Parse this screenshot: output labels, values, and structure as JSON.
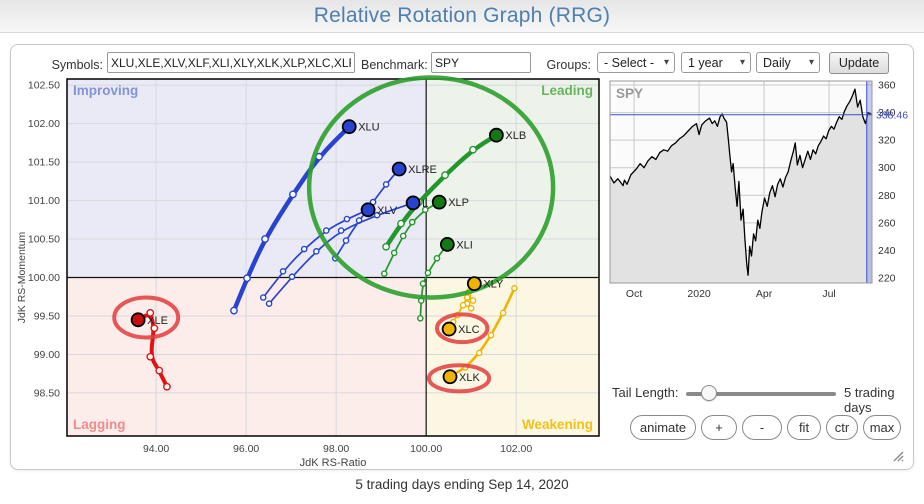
{
  "page": {
    "title": "Relative Rotation Graph (RRG)",
    "caption": "5 trading days ending Sep 14, 2020"
  },
  "controls": {
    "symbols_label": "Symbols:",
    "symbols_value": "XLU,XLE,XLV,XLF,XLI,XLY,XLK,XLP,XLC,XLRE,XL",
    "benchmark_label": "Benchmark:",
    "benchmark_value": "SPY",
    "groups_label": "Groups:",
    "groups_value": "- Select -",
    "period_value": "1 year",
    "frequency_value": "Daily",
    "update_label": "Update"
  },
  "tail": {
    "label": "Tail Length:",
    "value_text": "5 trading days",
    "slider_pos": 0.15
  },
  "buttons": [
    "animate",
    "+",
    "-",
    "fit",
    "ctr",
    "max"
  ],
  "chart_data": [
    {
      "type": "scatter",
      "title": "Relative Rotation Graph",
      "xlabel": "JdK RS-Ratio",
      "ylabel": "JdK RS-Momentum",
      "xlim": [
        92.02,
        103.84
      ],
      "ylim": [
        97.94,
        102.58
      ],
      "xticks": [
        94,
        96,
        98,
        100,
        102
      ],
      "yticks": [
        98.5,
        99.0,
        99.5,
        100.0,
        100.5,
        101.0,
        101.5,
        102.0,
        102.5
      ],
      "center": [
        100,
        100
      ],
      "grid": true,
      "quadrants": [
        {
          "name": "Improving",
          "text_color": "#8293d8",
          "bg": "#e9eaf5"
        },
        {
          "name": "Leading",
          "text_color": "#67b55b",
          "bg": "#edf3eb"
        },
        {
          "name": "Lagging",
          "text_color": "#f08c8c",
          "bg": "#fcecea"
        },
        {
          "name": "Weakening",
          "text_color": "#f2c118",
          "bg": "#fbf7e3"
        }
      ],
      "series": [
        {
          "symbol": "XLU",
          "label_display": "XLU",
          "color": "#2743cf",
          "dot_color": "#2743cf",
          "weight": 4.5,
          "points": [
            [
              95.73,
              99.57
            ],
            [
              96.02,
              99.99
            ],
            [
              96.42,
              100.5
            ],
            [
              97.04,
              101.08
            ],
            [
              97.62,
              101.57
            ],
            [
              98.29,
              101.96
            ]
          ]
        },
        {
          "symbol": "XLRE",
          "label_display": "XLRE",
          "color": "#2743cf",
          "dot_color": "#2743cf",
          "weight": 1.7,
          "points": [
            [
              97.98,
              100.25
            ],
            [
              98.22,
              100.48
            ],
            [
              98.51,
              100.74
            ],
            [
              98.82,
              100.98
            ],
            [
              99.11,
              101.21
            ],
            [
              99.4,
              101.41
            ]
          ]
        },
        {
          "symbol": "XLV",
          "label_display": "XLV",
          "color": "#2743cf",
          "dot_color": "#2743cf",
          "weight": 1.7,
          "points": [
            [
              96.38,
              99.74
            ],
            [
              96.82,
              100.08
            ],
            [
              97.29,
              100.37
            ],
            [
              97.78,
              100.61
            ],
            [
              98.24,
              100.76
            ],
            [
              98.71,
              100.88
            ]
          ]
        },
        {
          "symbol": "XLF",
          "label_display": "L",
          "color": "#2743cf",
          "dot_color": "#2743cf",
          "weight": 1.7,
          "points": [
            [
              96.51,
              99.66
            ],
            [
              97.02,
              100.01
            ],
            [
              97.56,
              100.34
            ],
            [
              98.11,
              100.61
            ],
            [
              98.91,
              100.81
            ],
            [
              99.71,
              100.97
            ]
          ]
        },
        {
          "symbol": "XLP",
          "label_display": "XLP",
          "color": "#22982c",
          "dot_color": "#127a12",
          "weight": 1.7,
          "points": [
            [
              99.07,
              100.05
            ],
            [
              99.29,
              100.32
            ],
            [
              99.49,
              100.54
            ],
            [
              99.69,
              100.72
            ],
            [
              99.98,
              100.88
            ],
            [
              100.29,
              100.98
            ]
          ]
        },
        {
          "symbol": "XLB",
          "label_display": "XLB",
          "color": "#22982c",
          "dot_color": "#127a12",
          "weight": 4.5,
          "points": [
            [
              99.11,
              100.4
            ],
            [
              99.44,
              100.7
            ],
            [
              99.84,
              100.98
            ],
            [
              100.42,
              101.33
            ],
            [
              101.04,
              101.66
            ],
            [
              101.56,
              101.85
            ]
          ]
        },
        {
          "symbol": "XLI",
          "label_display": "XLI",
          "color": "#22982c",
          "dot_color": "#127a12",
          "weight": 1.7,
          "points": [
            [
              99.87,
              99.47
            ],
            [
              99.89,
              99.7
            ],
            [
              99.93,
              99.92
            ],
            [
              100.04,
              100.06
            ],
            [
              100.24,
              100.25
            ],
            [
              100.47,
              100.43
            ]
          ]
        },
        {
          "symbol": "XLY",
          "label_display": "XLY",
          "color": "#f0b400",
          "dot_color": "#f0b400",
          "weight": 1.7,
          "points": [
            [
              101.0,
              99.6
            ],
            [
              100.91,
              99.66
            ],
            [
              101.04,
              99.7
            ],
            [
              100.93,
              99.77
            ],
            [
              101.02,
              99.85
            ],
            [
              101.07,
              99.92
            ]
          ]
        },
        {
          "symbol": "XLC",
          "label_display": "XLC",
          "color": "#f0b400",
          "dot_color": "#f0b400",
          "weight": 1.7,
          "points": [
            [
              100.96,
              99.82
            ],
            [
              100.91,
              99.74
            ],
            [
              100.82,
              99.64
            ],
            [
              100.69,
              99.51
            ],
            [
              100.6,
              99.42
            ],
            [
              100.51,
              99.33
            ]
          ]
        },
        {
          "symbol": "XLK",
          "label_display": "XLK",
          "color": "#f0b400",
          "dot_color": "#f0b400",
          "weight": 2.6,
          "points": [
            [
              101.96,
              99.86
            ],
            [
              101.71,
              99.54
            ],
            [
              101.44,
              99.25
            ],
            [
              101.18,
              99.02
            ],
            [
              100.87,
              98.83
            ],
            [
              100.53,
              98.71
            ]
          ]
        },
        {
          "symbol": "XLE",
          "label_display": "XLE",
          "color": "#e31212",
          "dot_color": "#c80f0f",
          "weight": 4.0,
          "points": [
            [
              94.24,
              98.58
            ],
            [
              94.07,
              98.79
            ],
            [
              93.87,
              98.97
            ],
            [
              93.96,
              99.34
            ],
            [
              93.87,
              99.54
            ],
            [
              93.6,
              99.45
            ]
          ]
        }
      ],
      "annotations": {
        "circle": {
          "cx": 100.11,
          "cy": 101.17,
          "rx": 2.71,
          "ry": 1.43,
          "color": "#2ca02c",
          "width": 4.5
        },
        "ellipses": [
          {
            "cx": 93.78,
            "cy": 99.48,
            "rx": 0.71,
            "ry": 0.26,
            "color": "#e23c3c",
            "width": 4
          },
          {
            "cx": 100.8,
            "cy": 99.34,
            "rx": 0.56,
            "ry": 0.18,
            "color": "#e23c3c",
            "width": 4
          },
          {
            "cx": 100.73,
            "cy": 98.69,
            "rx": 0.67,
            "ry": 0.17,
            "color": "#e23c3c",
            "width": 4
          }
        ]
      }
    },
    {
      "type": "area",
      "title": "SPY",
      "ylim": [
        216.4,
        362.9
      ],
      "yticks": [
        220,
        240,
        260,
        280,
        300,
        320,
        340,
        360
      ],
      "xtick_labels": [
        "Oct",
        "2020",
        "Apr",
        "Jul"
      ],
      "xtick_pos": [
        0.092,
        0.34,
        0.588,
        0.836
      ],
      "last_price": "338.46",
      "last_price_value": 338.46,
      "highlight_start": 0.98,
      "line_color": "#000000",
      "fill_color": "#e2e2e2",
      "marker_color": "#3a50c8",
      "points": [
        [
          0,
          294
        ],
        [
          0.015,
          289
        ],
        [
          0.03,
          292
        ],
        [
          0.05,
          287
        ],
        [
          0.055,
          291
        ],
        [
          0.065,
          288
        ],
        [
          0.08,
          295
        ],
        [
          0.1,
          299
        ],
        [
          0.115,
          303
        ],
        [
          0.13,
          300
        ],
        [
          0.145,
          305
        ],
        [
          0.16,
          308
        ],
        [
          0.175,
          306
        ],
        [
          0.19,
          311
        ],
        [
          0.205,
          313
        ],
        [
          0.22,
          312
        ],
        [
          0.235,
          316
        ],
        [
          0.25,
          318
        ],
        [
          0.265,
          321
        ],
        [
          0.28,
          323
        ],
        [
          0.3,
          327
        ],
        [
          0.315,
          330
        ],
        [
          0.33,
          332
        ],
        [
          0.34,
          324
        ],
        [
          0.35,
          331
        ],
        [
          0.365,
          334
        ],
        [
          0.38,
          336
        ],
        [
          0.39,
          332
        ],
        [
          0.4,
          334
        ],
        [
          0.41,
          330
        ],
        [
          0.42,
          337
        ],
        [
          0.428,
          339
        ],
        [
          0.435,
          336
        ],
        [
          0.445,
          333
        ],
        [
          0.452,
          320
        ],
        [
          0.458,
          308
        ],
        [
          0.464,
          297
        ],
        [
          0.47,
          303
        ],
        [
          0.478,
          285
        ],
        [
          0.485,
          272
        ],
        [
          0.492,
          290
        ],
        [
          0.5,
          262
        ],
        [
          0.508,
          270
        ],
        [
          0.515,
          248
        ],
        [
          0.522,
          230
        ],
        [
          0.527,
          222
        ],
        [
          0.533,
          243
        ],
        [
          0.54,
          236
        ],
        [
          0.548,
          252
        ],
        [
          0.556,
          247
        ],
        [
          0.564,
          262
        ],
        [
          0.572,
          256
        ],
        [
          0.58,
          268
        ],
        [
          0.59,
          278
        ],
        [
          0.6,
          272
        ],
        [
          0.61,
          282
        ],
        [
          0.62,
          287
        ],
        [
          0.63,
          279
        ],
        [
          0.64,
          288
        ],
        [
          0.65,
          292
        ],
        [
          0.66,
          286
        ],
        [
          0.67,
          293
        ],
        [
          0.68,
          297
        ],
        [
          0.69,
          305
        ],
        [
          0.7,
          312
        ],
        [
          0.707,
          318
        ],
        [
          0.715,
          302
        ],
        [
          0.725,
          309
        ],
        [
          0.735,
          300
        ],
        [
          0.745,
          306
        ],
        [
          0.755,
          312
        ],
        [
          0.765,
          306
        ],
        [
          0.775,
          313
        ],
        [
          0.785,
          310
        ],
        [
          0.795,
          316
        ],
        [
          0.805,
          319
        ],
        [
          0.815,
          323
        ],
        [
          0.825,
          321
        ],
        [
          0.835,
          327
        ],
        [
          0.845,
          330
        ],
        [
          0.855,
          328
        ],
        [
          0.865,
          333
        ],
        [
          0.875,
          337
        ],
        [
          0.885,
          335
        ],
        [
          0.895,
          341
        ],
        [
          0.905,
          345
        ],
        [
          0.915,
          348
        ],
        [
          0.925,
          352
        ],
        [
          0.935,
          357
        ],
        [
          0.945,
          344
        ],
        [
          0.955,
          349
        ],
        [
          0.965,
          337
        ],
        [
          0.975,
          332
        ],
        [
          0.985,
          340
        ],
        [
          1,
          338.46
        ]
      ]
    }
  ]
}
